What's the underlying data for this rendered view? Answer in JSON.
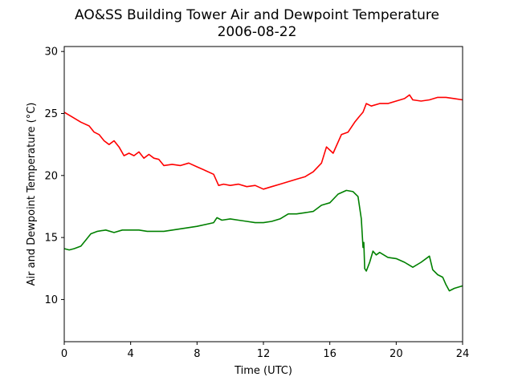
{
  "chart_data": {
    "type": "line",
    "title": "AO&SS Building Tower Air and Dewpoint Temperature",
    "subtitle": "2006-08-22",
    "xlabel": "Time (UTC)",
    "ylabel": "Air and Dewpoint Temperature (°C)",
    "xlim": [
      0,
      24
    ],
    "ylim": [
      6.6,
      30.4
    ],
    "xticks": [
      "0",
      "4",
      "8",
      "12",
      "16",
      "20",
      "24"
    ],
    "yticks": [
      "10",
      "15",
      "20",
      "25",
      "30"
    ],
    "grid": false,
    "series": [
      {
        "color": "#ff0000",
        "x": [
          0,
          0.5,
          1,
          1.5,
          1.8,
          2.1,
          2.4,
          2.7,
          3.0,
          3.3,
          3.6,
          3.9,
          4.2,
          4.5,
          4.8,
          5.1,
          5.4,
          5.7,
          6.0,
          6.5,
          7.0,
          7.5,
          8.0,
          8.5,
          9.0,
          9.3,
          9.6,
          10.0,
          10.5,
          11.0,
          11.5,
          12.0,
          12.5,
          13.0,
          13.5,
          14.0,
          14.5,
          15.0,
          15.5,
          15.8,
          16.2,
          16.7,
          17.1,
          17.5,
          17.8,
          18.0,
          18.2,
          18.5,
          19.0,
          19.5,
          20.0,
          20.5,
          20.8,
          21.0,
          21.5,
          22.0,
          22.5,
          23.0,
          23.5,
          24.0
        ],
        "values": [
          25.1,
          24.7,
          24.3,
          24.0,
          23.5,
          23.3,
          22.8,
          22.5,
          22.8,
          22.3,
          21.6,
          21.8,
          21.6,
          21.9,
          21.4,
          21.7,
          21.4,
          21.3,
          20.8,
          20.9,
          20.8,
          21.0,
          20.7,
          20.4,
          20.1,
          19.2,
          19.3,
          19.2,
          19.3,
          19.1,
          19.2,
          18.9,
          19.1,
          19.3,
          19.5,
          19.7,
          19.9,
          20.3,
          21.0,
          22.3,
          21.8,
          23.3,
          23.5,
          24.3,
          24.8,
          25.1,
          25.8,
          25.6,
          25.8,
          25.8,
          26.0,
          26.2,
          26.5,
          26.1,
          26.0,
          26.1,
          26.3,
          26.3,
          26.2,
          26.1
        ]
      },
      {
        "color": "#008000",
        "x": [
          0,
          0.3,
          0.6,
          1.0,
          1.3,
          1.6,
          2.0,
          2.5,
          3.0,
          3.5,
          4.0,
          4.5,
          5.0,
          5.5,
          6.0,
          7.0,
          8.0,
          9.0,
          9.2,
          9.5,
          10.0,
          10.5,
          11.0,
          11.5,
          12.0,
          12.5,
          13.0,
          13.5,
          14.0,
          14.5,
          15.0,
          15.5,
          16.0,
          16.5,
          17.0,
          17.4,
          17.7,
          17.9,
          18.0,
          18.05,
          18.1,
          18.2,
          18.4,
          18.6,
          18.8,
          19.0,
          19.5,
          20.0,
          20.5,
          21.0,
          21.5,
          22.0,
          22.2,
          22.5,
          22.8,
          23.0,
          23.2,
          23.5,
          24.0
        ],
        "values": [
          14.1,
          14.0,
          14.1,
          14.3,
          14.8,
          15.3,
          15.5,
          15.6,
          15.4,
          15.6,
          15.6,
          15.6,
          15.5,
          15.5,
          15.5,
          15.7,
          15.9,
          16.2,
          16.6,
          16.4,
          16.5,
          16.4,
          16.3,
          16.2,
          16.2,
          16.3,
          16.5,
          16.9,
          16.9,
          17.0,
          17.1,
          17.6,
          17.8,
          18.5,
          18.8,
          18.7,
          18.3,
          16.5,
          14.2,
          14.6,
          12.5,
          12.3,
          13.0,
          13.9,
          13.6,
          13.8,
          13.4,
          13.3,
          13.0,
          12.6,
          13.0,
          13.5,
          12.4,
          12.0,
          11.8,
          11.2,
          10.7,
          10.9,
          11.1
        ]
      }
    ]
  }
}
